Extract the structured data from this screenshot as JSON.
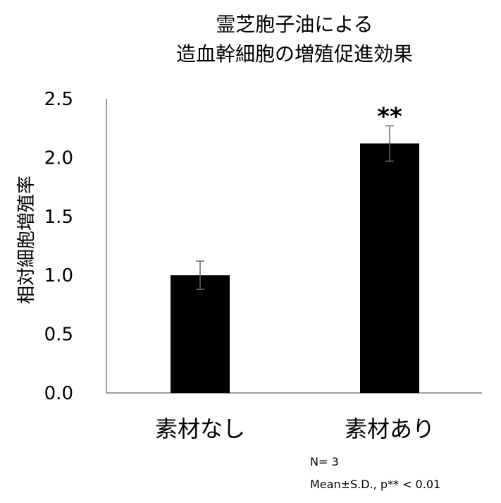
{
  "chart_data": {
    "type": "bar",
    "title_lines": [
      "霊芝胞子油による",
      "造血幹細胞の増殖促進効果"
    ],
    "xlabel": "",
    "ylabel": "相対細胞増殖率",
    "categories": [
      "素材なし",
      "素材あり"
    ],
    "values": [
      1.0,
      2.12
    ],
    "errors": [
      0.12,
      0.15
    ],
    "significance": [
      "",
      "**"
    ],
    "ylim": [
      0,
      2.5
    ],
    "yticks": [
      "0.0",
      "0.5",
      "1.0",
      "1.5",
      "2.0",
      "2.5"
    ],
    "bar_color": "#000000",
    "error_color": "#666666",
    "grid": false
  },
  "notes": {
    "n": "N= 3",
    "stat": "Mean±S.D., p** < 0.01"
  }
}
